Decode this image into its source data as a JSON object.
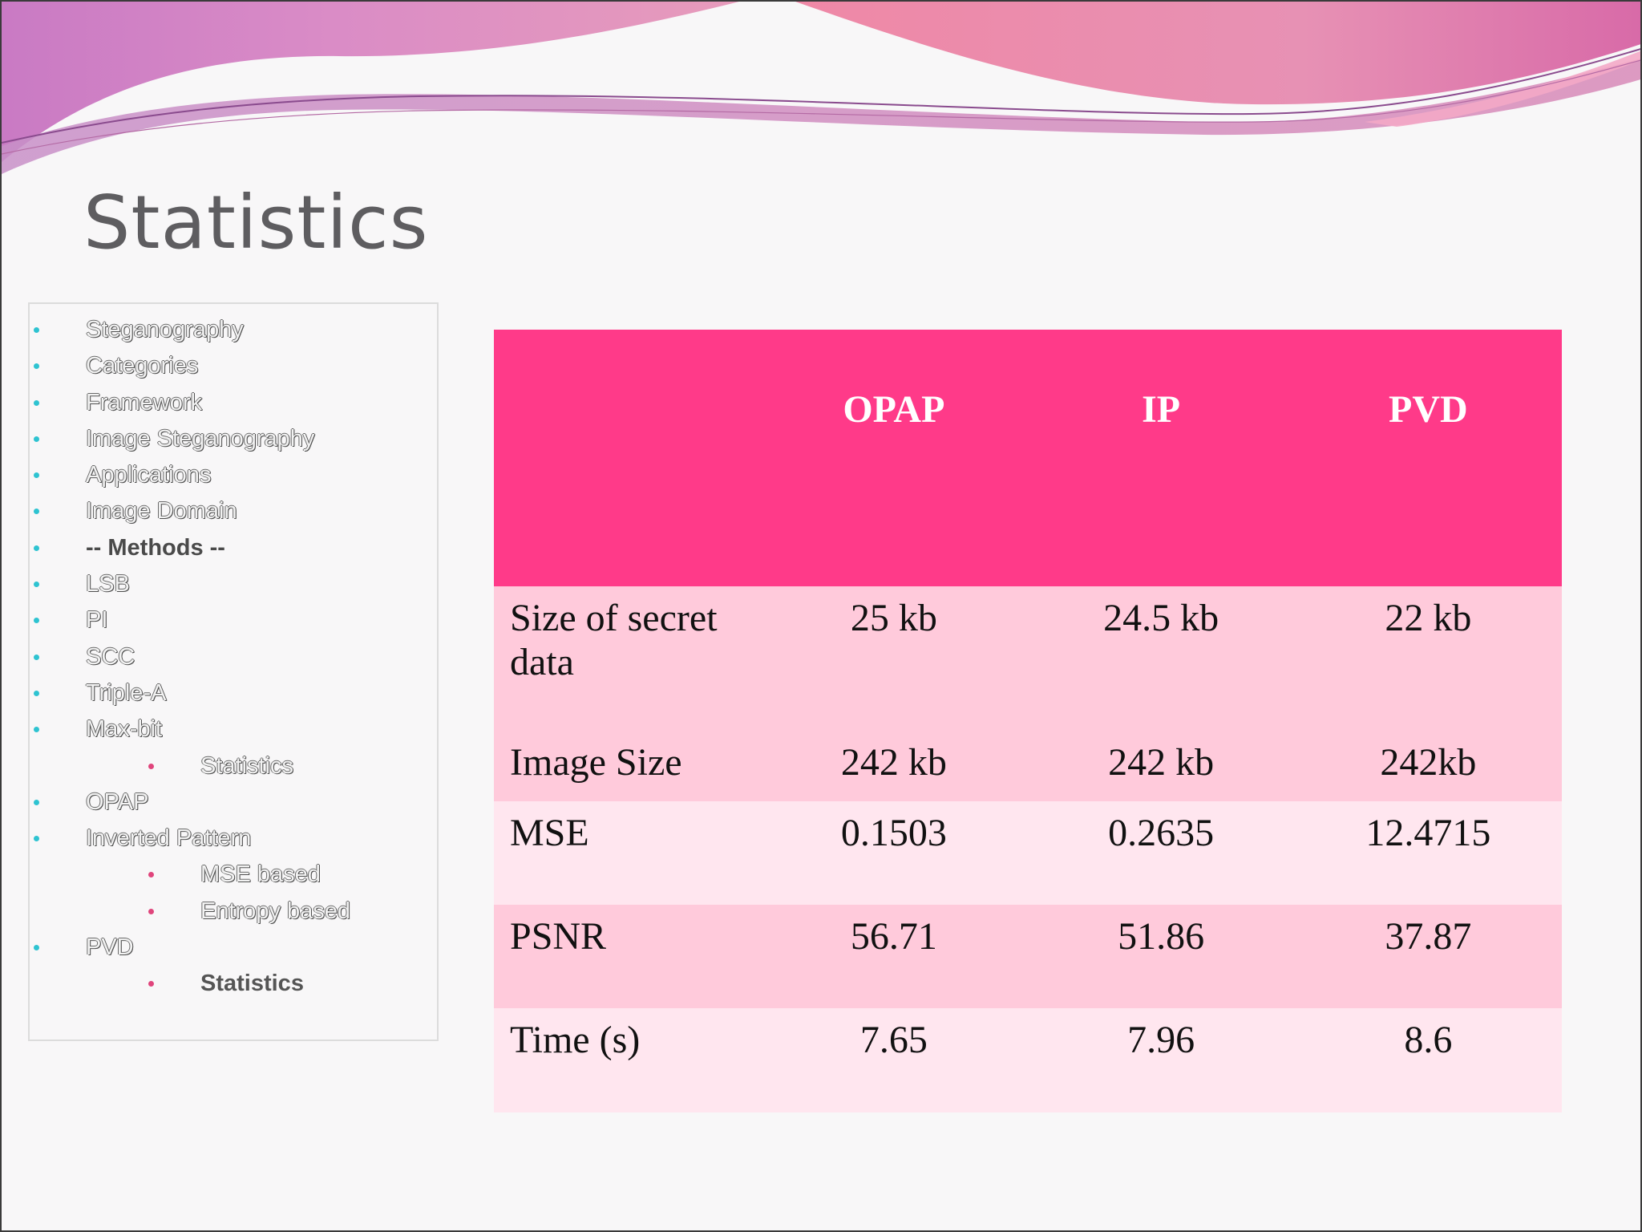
{
  "slide": {
    "title": "Statistics"
  },
  "sidebar": {
    "items": [
      {
        "label": "Steganography",
        "level": 1,
        "style": "normal"
      },
      {
        "label": "Categories",
        "level": 1,
        "style": "normal"
      },
      {
        "label": "Framework",
        "level": 1,
        "style": "normal"
      },
      {
        "label": "Image Steganography",
        "level": 1,
        "style": "normal"
      },
      {
        "label": "Applications",
        "level": 1,
        "style": "normal"
      },
      {
        "label": "Image Domain",
        "level": 1,
        "style": "normal"
      },
      {
        "label": "-- Methods --",
        "level": 1,
        "style": "bold"
      },
      {
        "label": "LSB",
        "level": 1,
        "style": "normal"
      },
      {
        "label": "PI",
        "level": 1,
        "style": "normal"
      },
      {
        "label": "SCC",
        "level": 1,
        "style": "normal"
      },
      {
        "label": "Triple-A",
        "level": 1,
        "style": "normal"
      },
      {
        "label": "Max-bit",
        "level": 1,
        "style": "normal"
      },
      {
        "label": "Statistics",
        "level": 2,
        "style": "normal"
      },
      {
        "label": "OPAP",
        "level": 1,
        "style": "normal"
      },
      {
        "label": "Inverted Pattern",
        "level": 1,
        "style": "normal"
      },
      {
        "label": "MSE based",
        "level": 2,
        "style": "normal"
      },
      {
        "label": "Entropy based",
        "level": 2,
        "style": "normal"
      },
      {
        "label": "PVD",
        "level": 1,
        "style": "normal"
      },
      {
        "label": "Statistics",
        "level": 2,
        "style": "active"
      }
    ]
  },
  "table": {
    "headers": [
      "",
      "OPAP",
      "IP",
      "PVD"
    ],
    "rows": [
      {
        "label": "Size of secret data",
        "values": [
          "25 kb",
          "24.5 kb",
          "22 kb"
        ]
      },
      {
        "label": "Image Size",
        "values": [
          "242 kb",
          "242 kb",
          "242kb"
        ]
      },
      {
        "label": "MSE",
        "values": [
          "0.1503",
          "0.2635",
          "12.4715"
        ]
      },
      {
        "label": "PSNR",
        "values": [
          "56.71",
          "51.86",
          "37.87"
        ]
      },
      {
        "label": "Time (s)",
        "values": [
          "7.65",
          "7.96",
          "8.6"
        ]
      }
    ]
  },
  "colors": {
    "header_fill": "#ff3a89",
    "row_dark": "#ffcadb",
    "row_light": "#ffe6ef",
    "bullet_main": "#2ec3d1",
    "bullet_sub": "#e0457c",
    "title_text": "#5e5d60"
  }
}
